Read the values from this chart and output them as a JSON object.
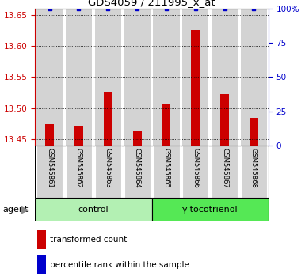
{
  "title": "GDS4059 / 211995_x_at",
  "samples": [
    "GSM545861",
    "GSM545862",
    "GSM545863",
    "GSM545864",
    "GSM545865",
    "GSM545866",
    "GSM545867",
    "GSM545868"
  ],
  "bar_values": [
    13.474,
    13.472,
    13.526,
    13.464,
    13.507,
    13.625,
    13.522,
    13.484
  ],
  "percentile_values": [
    100,
    100,
    100,
    100,
    100,
    100,
    100,
    100
  ],
  "ylim_left": [
    13.44,
    13.66
  ],
  "ylim_right": [
    0,
    100
  ],
  "yticks_left": [
    13.45,
    13.5,
    13.55,
    13.6,
    13.65
  ],
  "yticks_right": [
    0,
    25,
    50,
    75,
    100
  ],
  "bar_color": "#cc0000",
  "dot_color": "#0000cc",
  "bar_bottom": 13.44,
  "groups": [
    {
      "label": "control",
      "start": 0,
      "end": 4,
      "color": "#b3f0b3"
    },
    {
      "label": "γ-tocotrienol",
      "start": 4,
      "end": 8,
      "color": "#55e855"
    }
  ],
  "agent_label": "agent",
  "legend_bar_label": "transformed count",
  "legend_dot_label": "percentile rank within the sample",
  "xlabel_color": "#cc0000",
  "ylabel_right_color": "#0000cc",
  "column_bg_color": "#d3d3d3"
}
